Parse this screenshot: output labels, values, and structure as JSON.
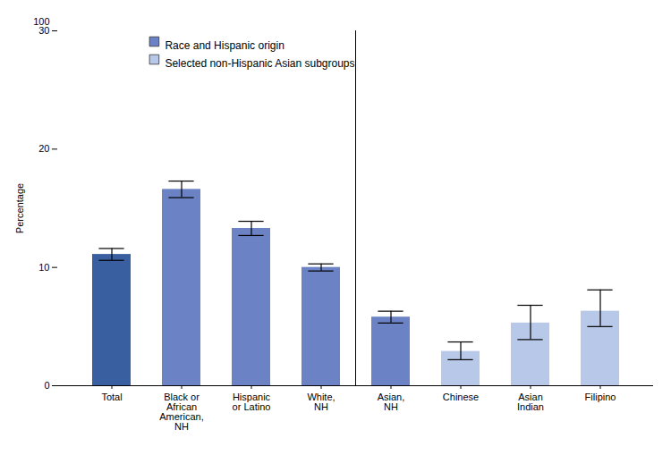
{
  "chart_data": {
    "type": "bar",
    "categories": [
      "Total",
      "Black or\nAfrican\nAmerican,\nNH",
      "Hispanic\nor Latino",
      "White,\nNH",
      "Asian,\nNH",
      "Chinese",
      "Asian\nIndian",
      "Filipino"
    ],
    "series": [
      {
        "name": "Race and Hispanic origin",
        "color": "#6b82c4",
        "values": [
          11.1,
          16.6,
          13.3,
          10.0,
          5.8,
          null,
          null,
          null
        ],
        "colors": [
          "#3a5fa0",
          "#6b82c4",
          "#6b82c4",
          "#6b82c4",
          "#6b82c4",
          null,
          null,
          null
        ],
        "error_lower": [
          0.5,
          0.7,
          0.6,
          0.3,
          0.5,
          null,
          null,
          null
        ],
        "error_upper": [
          0.5,
          0.7,
          0.6,
          0.3,
          0.5,
          null,
          null,
          null
        ]
      },
      {
        "name": "Selected non-Hispanic Asian subgroups",
        "color": "#b8c8e8",
        "values": [
          null,
          null,
          null,
          null,
          null,
          2.9,
          5.3,
          6.3
        ],
        "colors": [
          null,
          null,
          null,
          null,
          null,
          "#b8c8e8",
          "#b8c8e8",
          "#b8c8e8"
        ],
        "error_lower": [
          null,
          null,
          null,
          null,
          null,
          0.7,
          1.4,
          1.3
        ],
        "error_upper": [
          null,
          null,
          null,
          null,
          null,
          0.8,
          1.5,
          1.8
        ]
      }
    ],
    "ylabel": "Percentage",
    "ylim": [
      0,
      30
    ],
    "yticks": [
      0,
      10,
      20,
      30
    ],
    "annotations": [
      "100"
    ],
    "legend": "upper left",
    "grid": false
  }
}
